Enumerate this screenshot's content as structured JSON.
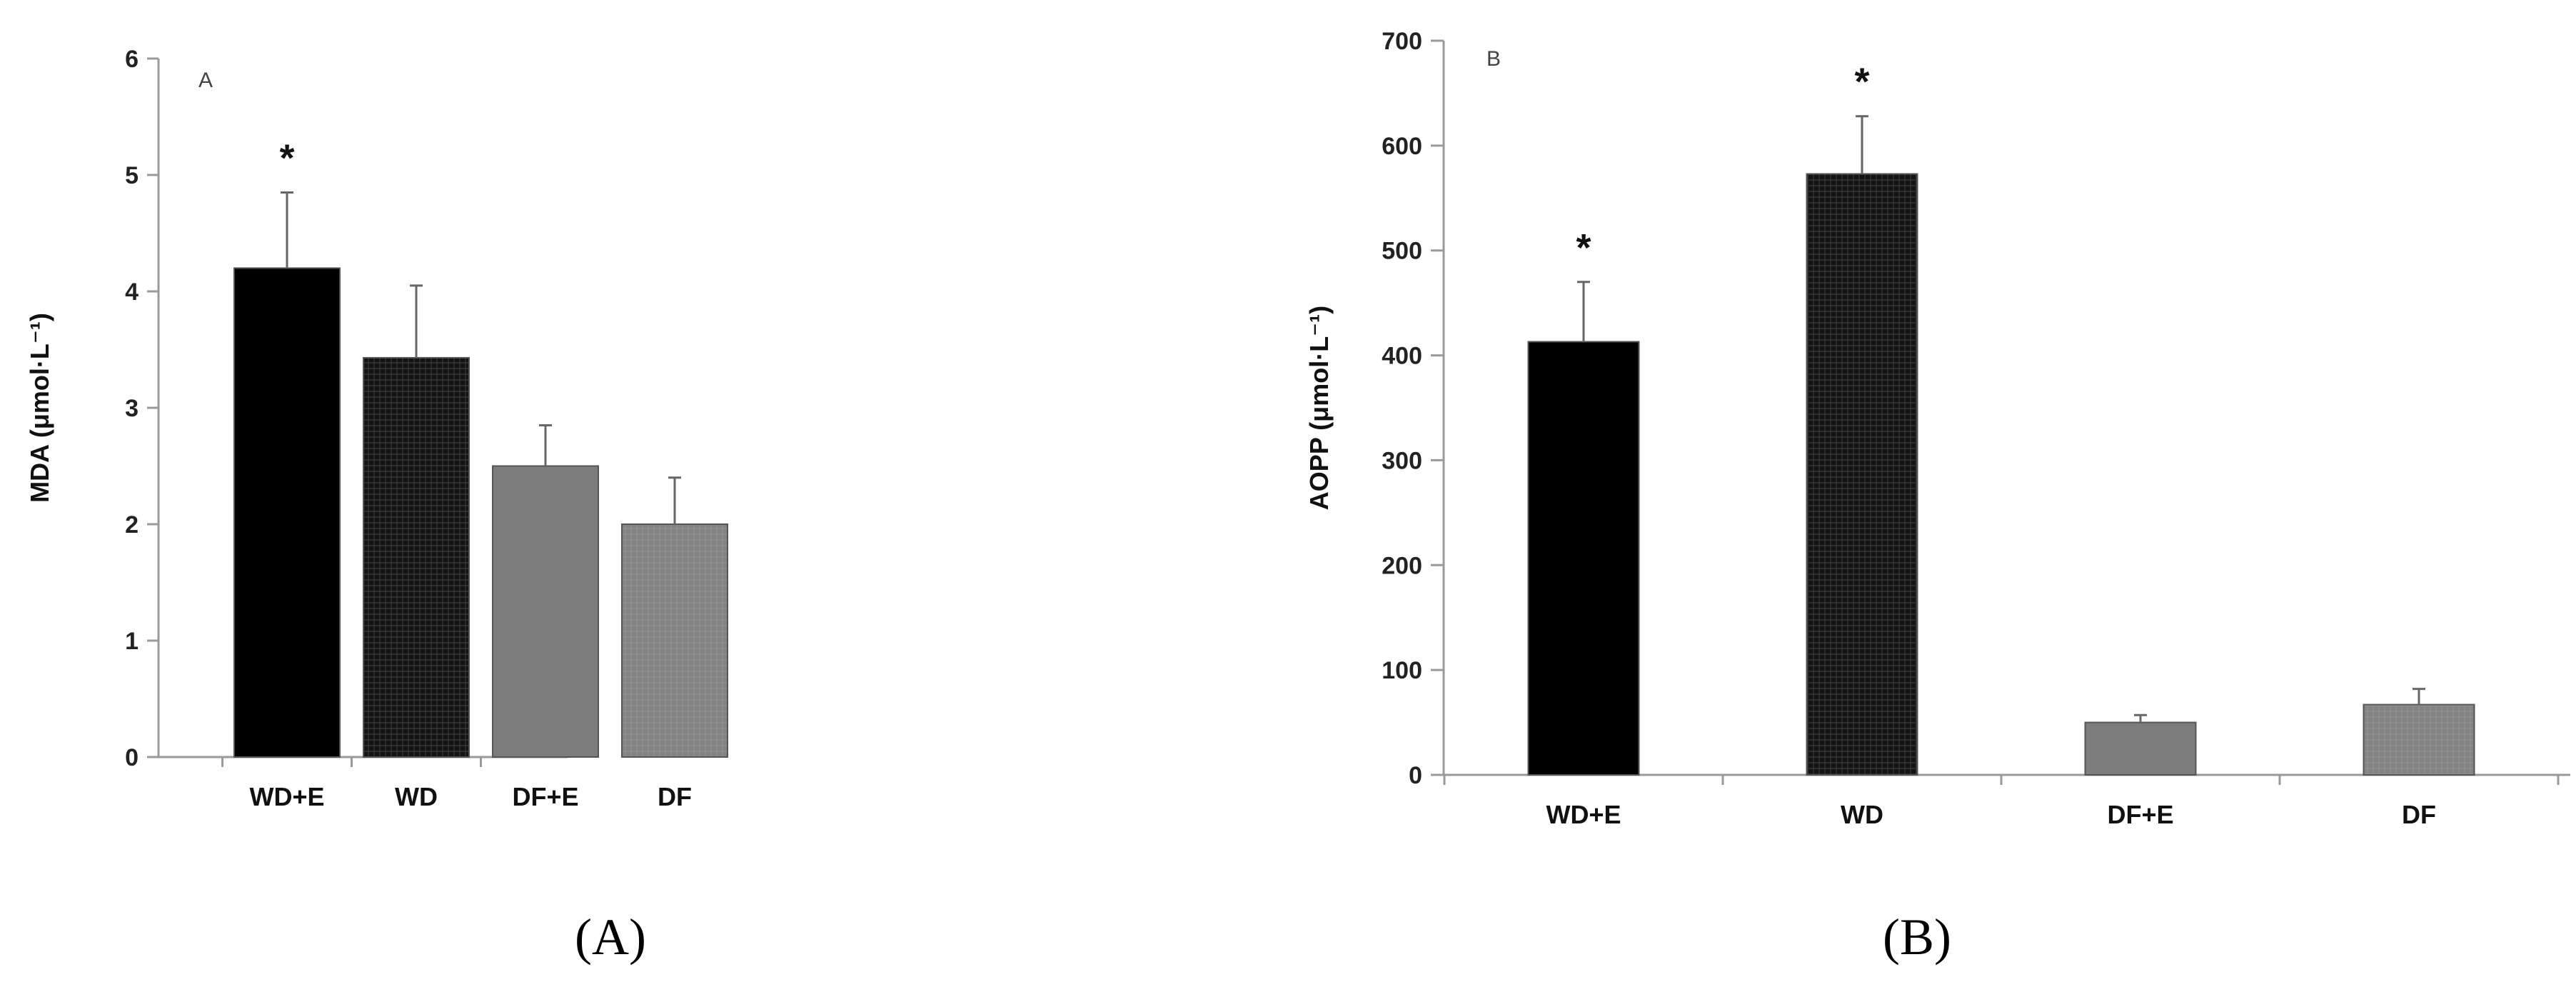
{
  "chart_data": [
    {
      "type": "bar",
      "panel_label": "A",
      "caption": "(A)",
      "categories": [
        "WD+E",
        "WD",
        "DF+E",
        "DF"
      ],
      "values": [
        4.2,
        3.43,
        2.5,
        2.0
      ],
      "error_upper": [
        0.65,
        0.62,
        0.35,
        0.4
      ],
      "significance": [
        "*",
        "",
        "",
        ""
      ],
      "bar_colors": [
        "#000000",
        "#1c1c1c",
        "#7c7c7c",
        "#8a8a8a"
      ],
      "xlabel": "",
      "ylabel": "MDA (μmol·L⁻¹)",
      "ylim": [
        0,
        6
      ],
      "yticks": [
        0,
        1,
        2,
        3,
        4,
        5,
        6
      ],
      "grid": false,
      "legend": "none"
    },
    {
      "type": "bar",
      "panel_label": "B",
      "caption": "(B)",
      "categories": [
        "WD+E",
        "WD",
        "DF+E",
        "DF"
      ],
      "values": [
        413,
        573,
        50,
        67
      ],
      "error_upper": [
        57,
        55,
        7,
        15
      ],
      "significance": [
        "*",
        "*",
        "",
        ""
      ],
      "bar_colors": [
        "#000000",
        "#1c1c1c",
        "#7c7c7c",
        "#8a8a8a"
      ],
      "xlabel": "",
      "ylabel": "AOPP (μmol·L⁻¹)",
      "ylim": [
        0,
        700
      ],
      "yticks": [
        0,
        100,
        200,
        300,
        400,
        500,
        600,
        700
      ],
      "grid": false,
      "legend": "none"
    }
  ]
}
